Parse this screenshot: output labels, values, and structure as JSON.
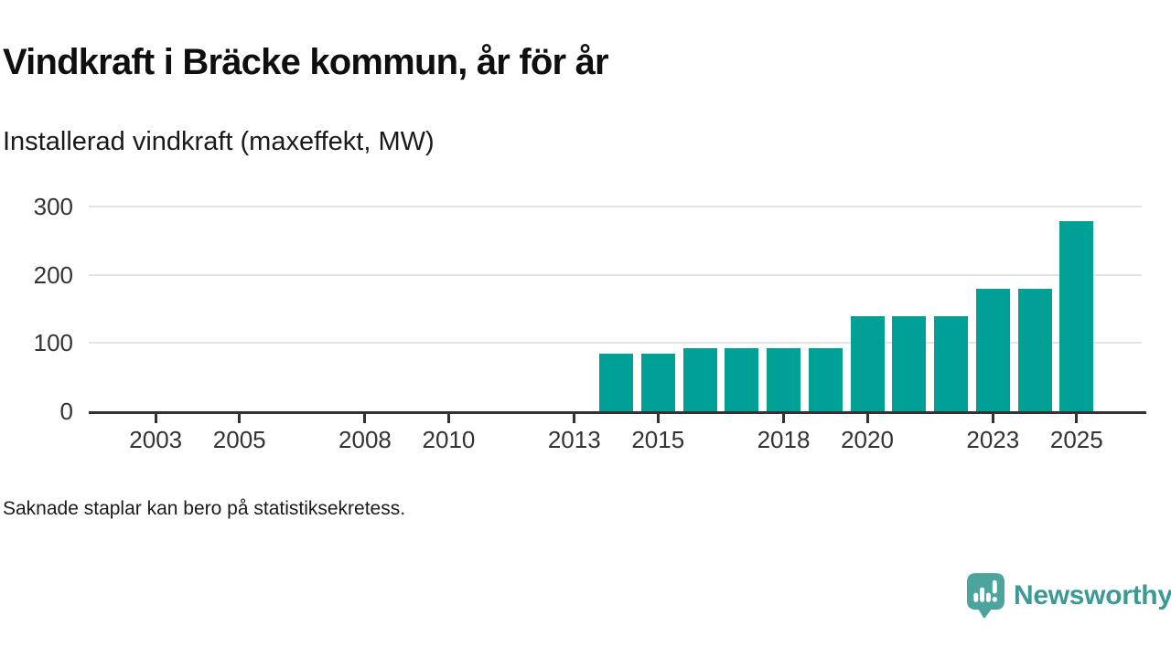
{
  "header": {
    "title": "Vindkraft i Bräcke kommun, år för år",
    "subtitle": "Installerad vindkraft (maxeffekt, MW)"
  },
  "footnote": "Saknade staplar kan bero på statistiksekretess.",
  "branding": {
    "name": "Newsworthy",
    "icon": "bar-chart-speech-bubble-icon",
    "icon_color": "#4ca49c",
    "text_color": "#3b9a92"
  },
  "chart_data": {
    "type": "bar",
    "title": "Vindkraft i Bräcke kommun, år för år",
    "ylabel": "Installerad vindkraft (maxeffekt, MW)",
    "xlabel": "",
    "x": [
      2014,
      2015,
      2016,
      2017,
      2018,
      2019,
      2020,
      2021,
      2022,
      2023,
      2024,
      2025
    ],
    "values": [
      85,
      85,
      92,
      92,
      92,
      92,
      139,
      139,
      139,
      180,
      180,
      278
    ],
    "x_tick_labels": [
      "2003",
      "2005",
      "2008",
      "2010",
      "2013",
      "2015",
      "2018",
      "2020",
      "2023",
      "2025"
    ],
    "y_tick_labels": [
      "0",
      "100",
      "200",
      "300"
    ],
    "y_ticks": [
      0,
      100,
      200,
      300
    ],
    "x_ticks": [
      2003,
      2005,
      2008,
      2010,
      2013,
      2015,
      2018,
      2020,
      2023,
      2025
    ],
    "xlim": [
      2001.4,
      2026.6
    ],
    "ylim": [
      0,
      300
    ],
    "bar_color": "#00a096",
    "grid": true,
    "gridline_color": "#e3e3e3",
    "axis_color": "#333333",
    "legend_position": "none",
    "unit": "MW"
  }
}
